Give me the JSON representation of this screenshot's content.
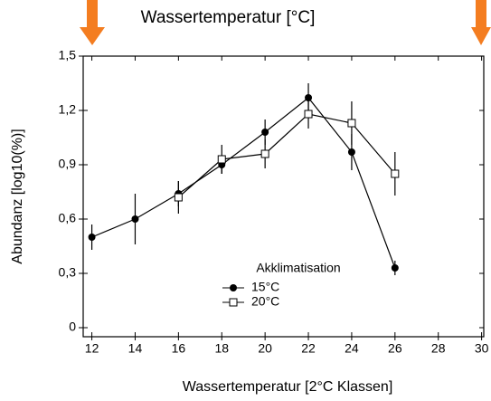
{
  "chart_data": {
    "type": "line",
    "title": "Wassertemperatur [°C]",
    "x_label": "Wassertemperatur [2°C Klassen]",
    "y_label": "Abundanz [log10(%)]",
    "legend_title": "Akklimatisation",
    "xlim": [
      11.6,
      30.1
    ],
    "xticks": [
      12,
      14,
      16,
      18,
      20,
      22,
      24,
      26,
      28,
      30
    ],
    "ylim": [
      -0.05,
      1.5
    ],
    "yticks": [
      0,
      {
        "value": 0.3,
        "label": "0,3"
      },
      {
        "value": 0.6,
        "label": "0,6"
      },
      {
        "value": 0.9,
        "label": "0,9"
      },
      {
        "value": 1.2,
        "label": "1,2"
      },
      {
        "value": 1.5,
        "label": "1,5"
      }
    ],
    "series": [
      {
        "name": "15°C",
        "color": "#000000",
        "marker": "circle",
        "x": [
          12,
          14,
          16,
          18,
          20,
          22,
          24,
          26
        ],
        "values": [
          0.5,
          0.6,
          0.74,
          0.9,
          1.08,
          1.27,
          0.97,
          0.33
        ],
        "errors": [
          0.07,
          0.14,
          0.07,
          0.05,
          0.07,
          0.08,
          0.1,
          0.04
        ]
      },
      {
        "name": "20°C",
        "color": "#000000",
        "marker": "square",
        "x": [
          16,
          18,
          20,
          22,
          24,
          26
        ],
        "values": [
          0.72,
          0.93,
          0.96,
          1.18,
          1.13,
          0.85
        ],
        "errors": [
          0.09,
          0.08,
          0.08,
          0.08,
          0.12,
          0.12
        ]
      }
    ]
  }
}
